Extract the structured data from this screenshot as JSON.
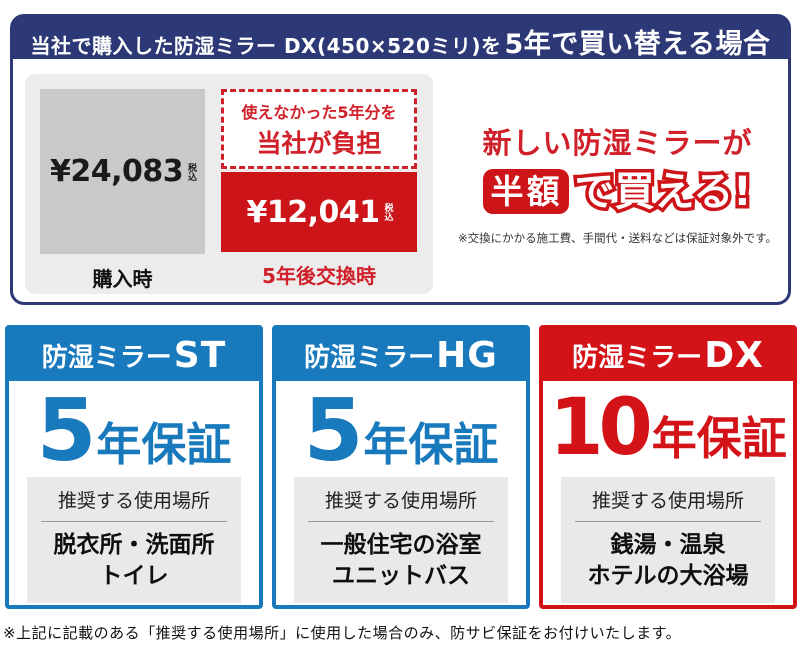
{
  "colors": {
    "navy": "#2c3976",
    "blue": "#1879bd",
    "red": "#cd1418",
    "red_accent": "#d0202a",
    "panel_gray": "#ececec",
    "square_gray": "#c9c9c9",
    "usage_gray": "#e9e9e9"
  },
  "top_banner": {
    "title_regular": "当社で購入した防湿ミラー DX(450×520ミリ)を",
    "title_emphasis": "5年で買い替える場合"
  },
  "comparison": {
    "purchase": {
      "price": "¥24,083",
      "tax_label": "税込",
      "caption": "購入時"
    },
    "exchange": {
      "burden_line1": "使えなかった5年分を",
      "burden_line2": "当社が負担",
      "price": "¥12,041",
      "tax_label": "税込",
      "caption": "5年後交換時"
    }
  },
  "promo": {
    "line1": "新しい防湿ミラーが",
    "highlight": "半額",
    "line2_rest": "で買える!",
    "note": "※交換にかかる施工費、手間代・送料などは保証対象外です。"
  },
  "cards": [
    {
      "series": "防湿ミラー",
      "model": "ST",
      "warranty_years": "5",
      "warranty_label": "年保証",
      "usage_title": "推奨する使用場所",
      "usage_line1": "脱衣所・洗面所",
      "usage_line2": "トイレ"
    },
    {
      "series": "防湿ミラー",
      "model": "HG",
      "warranty_years": "5",
      "warranty_label": "年保証",
      "usage_title": "推奨する使用場所",
      "usage_line1": "一般住宅の浴室",
      "usage_line2": "ユニットバス"
    },
    {
      "series": "防湿ミラー",
      "model": "DX",
      "warranty_years": "10",
      "warranty_label": "年保証",
      "usage_title": "推奨する使用場所",
      "usage_line1": "銭湯・温泉",
      "usage_line2": "ホテルの大浴場"
    }
  ],
  "footer_note": "※上記に記載のある「推奨する使用場所」に使用した場合のみ、防サビ保証をお付けいたします。"
}
